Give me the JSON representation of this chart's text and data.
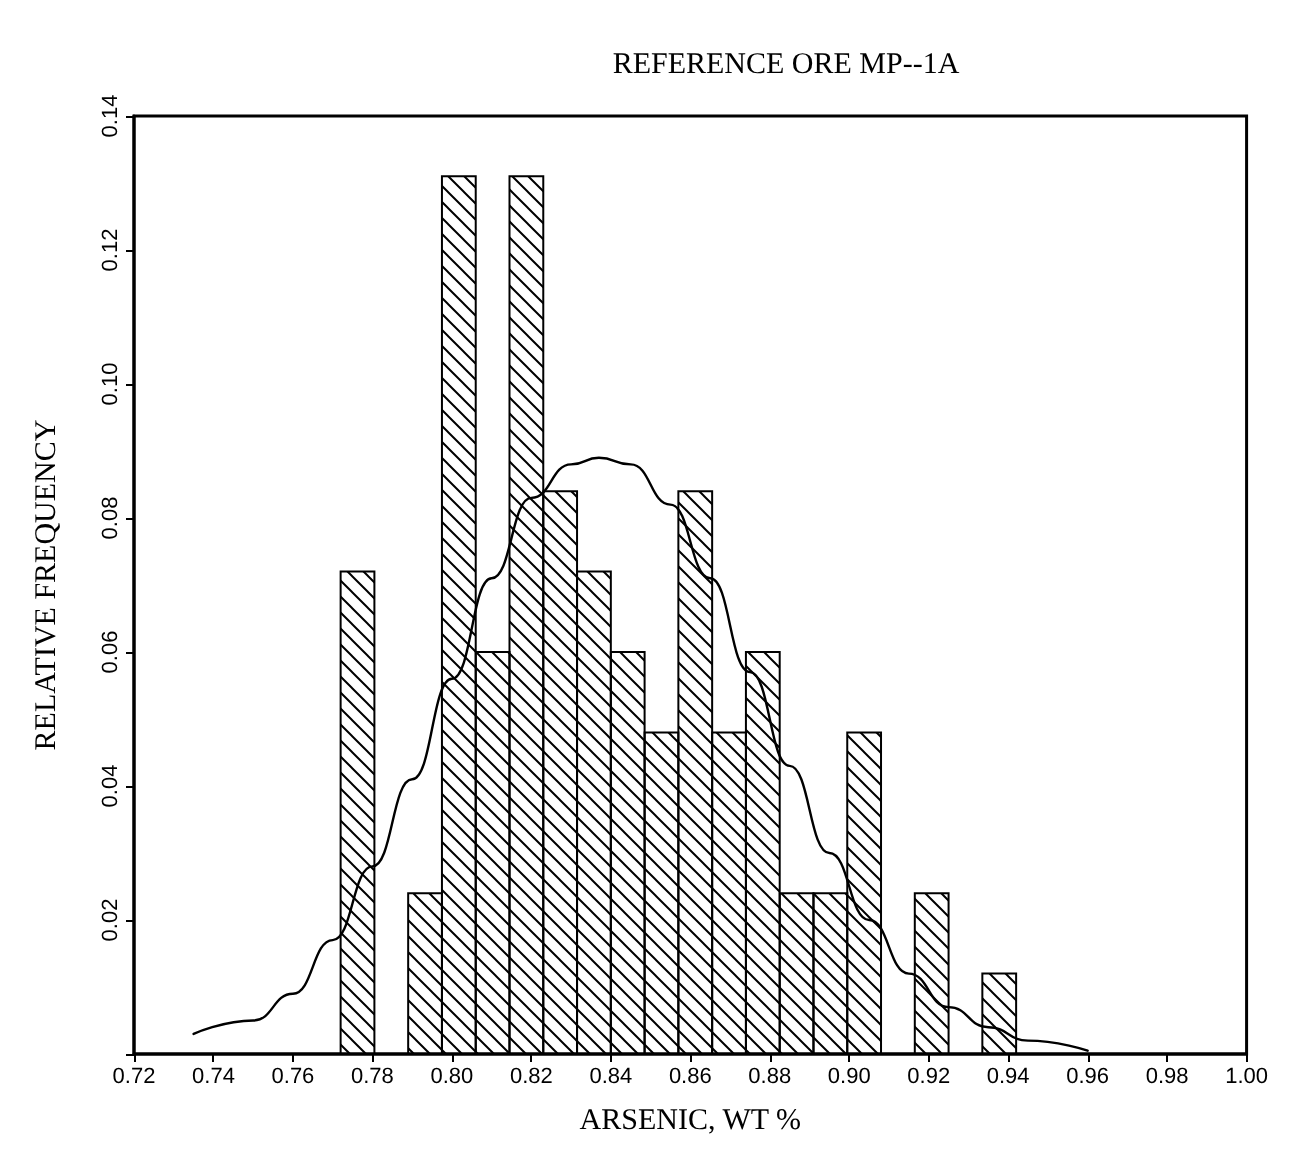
{
  "chart_data": {
    "type": "histogram",
    "title": "REFERENCE ORE MP--1A",
    "xlabel": "ARSENIC, WT %",
    "ylabel": "RELATIVE FREQUENCY",
    "bins": [
      0.772,
      0.7805,
      0.789,
      0.7975,
      0.806,
      0.8145,
      0.823,
      0.8315,
      0.84,
      0.8485,
      0.857,
      0.8655,
      0.874,
      0.8825,
      0.891,
      0.8995,
      0.908,
      0.9165,
      0.925,
      0.9335,
      0.942
    ],
    "values": [
      0.072,
      0,
      0.024,
      0.131,
      0.06,
      0.131,
      0.084,
      0.072,
      0.06,
      0.048,
      0.084,
      0.048,
      0.06,
      0.024,
      0.024,
      0.048,
      0,
      0.024,
      0,
      0.012
    ],
    "color": "#000000",
    "series": [
      {
        "type": "line",
        "color": "#000000",
        "x": [
          0.735,
          0.75,
          0.76,
          0.77,
          0.78,
          0.79,
          0.8,
          0.81,
          0.82,
          0.83,
          0.837,
          0.845,
          0.855,
          0.865,
          0.875,
          0.885,
          0.895,
          0.905,
          0.915,
          0.925,
          0.935,
          0.945,
          0.96
        ],
        "values": [
          0.003,
          0.005,
          0.009,
          0.017,
          0.028,
          0.041,
          0.056,
          0.071,
          0.083,
          0.088,
          0.089,
          0.088,
          0.082,
          0.071,
          0.057,
          0.043,
          0.03,
          0.02,
          0.012,
          0.007,
          0.004,
          0.002,
          0.0005
        ]
      }
    ],
    "xlim": [
      0.72,
      1.0
    ],
    "ylim": [
      0,
      0.14
    ],
    "xticks": [
      0.72,
      0.74,
      0.76,
      0.78,
      {
        "value": 0.8,
        "label": "0.80"
      },
      0.82,
      0.84,
      0.86,
      0.88,
      {
        "value": 0.9,
        "label": "0.90"
      },
      0.92,
      0.94,
      0.96,
      0.98,
      {
        "value": 1.0,
        "label": "1.00"
      }
    ],
    "yticks": [
      {
        "value": 0,
        "label": null
      },
      0.02,
      0.04,
      0.06,
      0.08,
      {
        "value": 0.1,
        "label": "0.10"
      },
      0.12,
      0.14
    ],
    "grid": false,
    "marker": "none",
    "line_style": "solid"
  }
}
